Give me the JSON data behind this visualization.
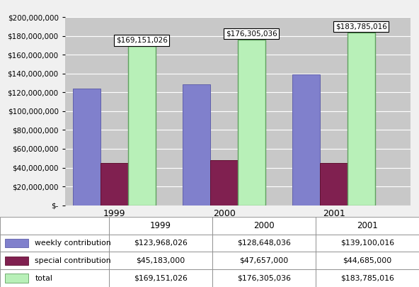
{
  "years": [
    "1999",
    "2000",
    "2001"
  ],
  "weekly": [
    123968026,
    128648036,
    139100016
  ],
  "special": [
    45183000,
    47657000,
    44685000
  ],
  "total": [
    169151026,
    176305036,
    183785016
  ],
  "weekly_labels": [
    "$123,968,026",
    "$128,648,036",
    "$139,100,016"
  ],
  "special_labels": [
    "$45,183,000",
    "$47,657,000",
    "$44,685,000"
  ],
  "total_labels": [
    "$169,151,026",
    "$176,305,036",
    "$183,785,016"
  ],
  "bar_color_weekly": "#8080cc",
  "bar_color_weekly_edge": "#6060aa",
  "bar_color_special": "#802050",
  "bar_color_special_edge": "#601030",
  "bar_color_total": "#b8f0b8",
  "bar_color_total_edge": "#60a060",
  "background_plot": "#c8c8c8",
  "background_fig": "#f0f0f0",
  "ylim": [
    0,
    200000000
  ],
  "ytick_step": 20000000,
  "bar_width": 0.25,
  "legend_labels": [
    "weekly contribution",
    "special contribution",
    "total"
  ],
  "floor_color": "#a0a0a0",
  "grid_color": "#ffffff",
  "annotation_box_color": "#ffffff"
}
